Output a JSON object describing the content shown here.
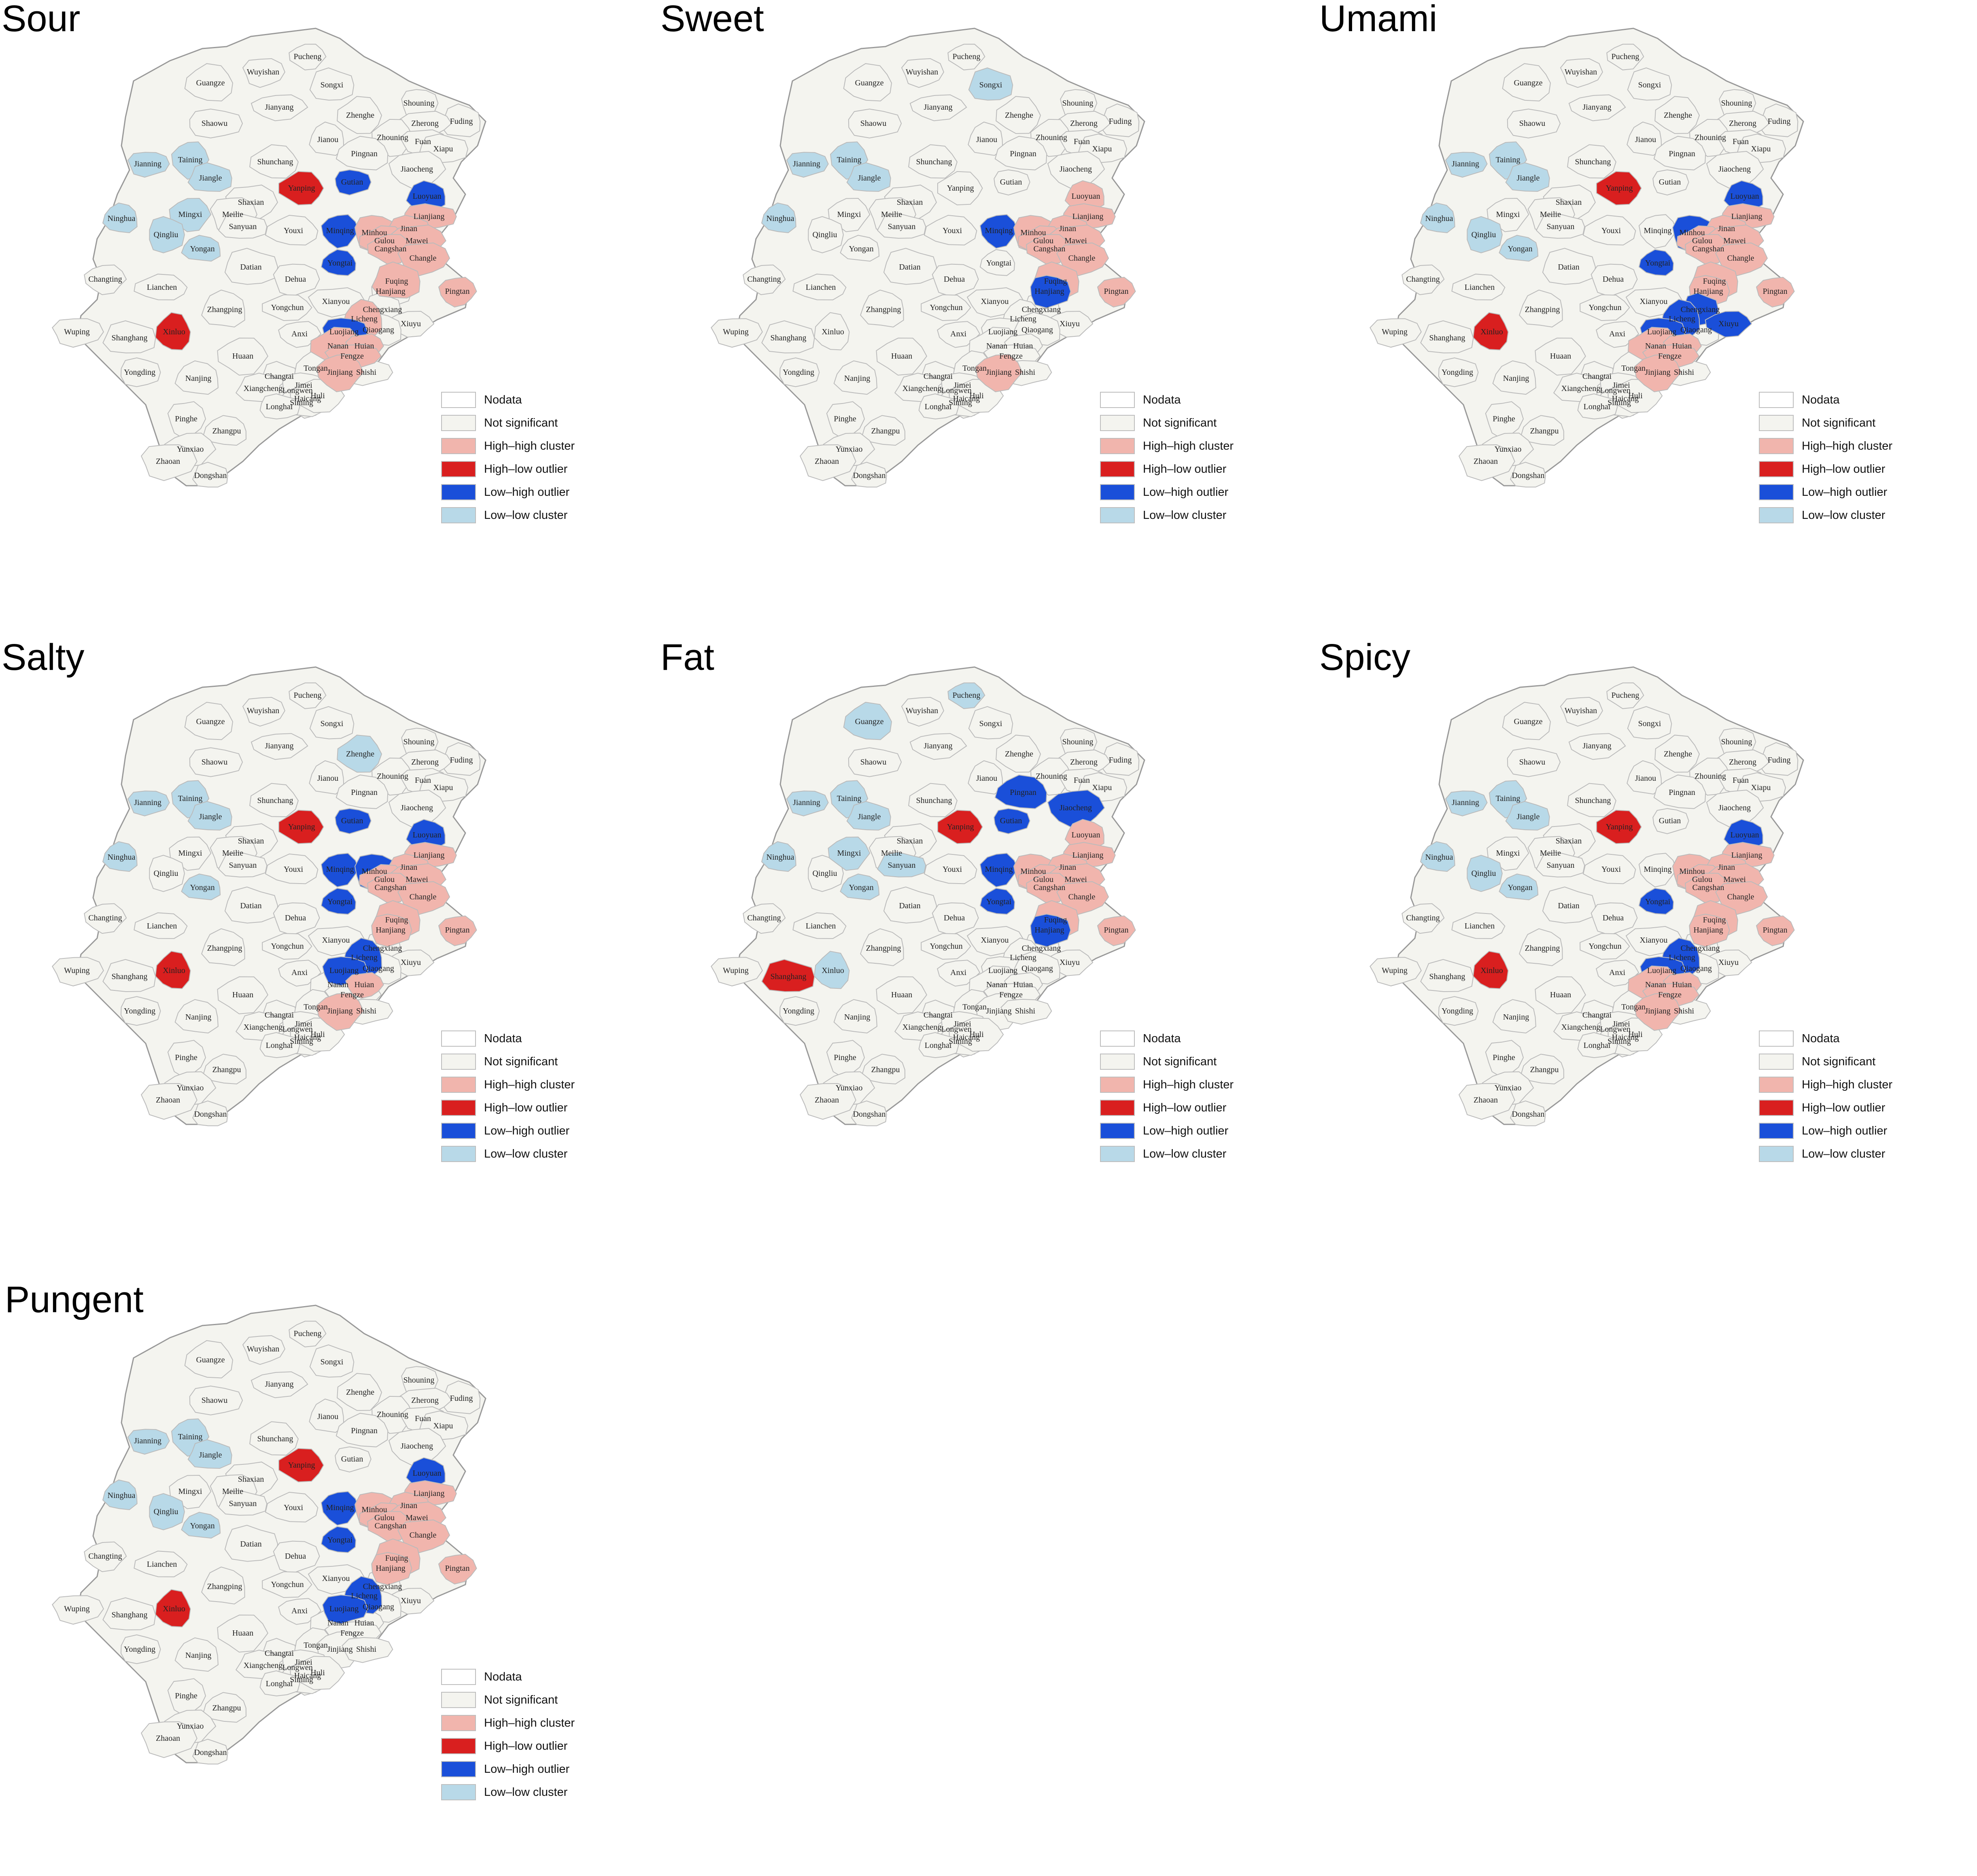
{
  "legend": {
    "items": [
      {
        "key": "nodata",
        "label": "Nodata",
        "color": "#ffffff"
      },
      {
        "key": "ns",
        "label": "Not significant",
        "color": "#f4f4ef"
      },
      {
        "key": "hh",
        "label": "High–high cluster",
        "color": "#f1b5ad"
      },
      {
        "key": "hl",
        "label": "High–low outlier",
        "color": "#d91f1f"
      },
      {
        "key": "lh",
        "label": "Low–high outlier",
        "color": "#1a4fd9"
      },
      {
        "key": "ll",
        "label": "Low–low cluster",
        "color": "#b8d9e8"
      }
    ]
  },
  "place_names": [
    "Pucheng",
    "Wuyishan",
    "Songxi",
    "Guangze",
    "Jianyang",
    "Shouning",
    "Fuding",
    "Zhenghe",
    "Zherong",
    "Shaowu",
    "Jianou",
    "Zhouning",
    "Fuan",
    "Xiapu",
    "Pingnan",
    "Taining",
    "Jianning",
    "Jiangle",
    "Shunchang",
    "Jiaocheng",
    "Gutian",
    "Luoyuan",
    "Yanping",
    "Shaxian",
    "Lianjiang",
    "Ninghua",
    "Mingxi",
    "Meilie",
    "Sanyuan",
    "Youxi",
    "Minqing",
    "Minhou",
    "Jinan",
    "Gulou",
    "Mawei",
    "Qingliu",
    "Yongan",
    "Cangshan",
    "Changle",
    "Datian",
    "Yongtai",
    "Changting",
    "Dehua",
    "Fuqing",
    "Lianchen",
    "Pingtan",
    "Hanjiang",
    "Zhangping",
    "Yongchun",
    "Xianyou",
    "Chengxiang",
    "Licheng",
    "Xiuyu",
    "Wuping",
    "Shanghang",
    "Xinluo",
    "Anxi",
    "Luojiang",
    "Qiaogang",
    "Nanan",
    "Huian",
    "Yongding",
    "Nanjing",
    "Huaan",
    "Fengze",
    "Changtai",
    "Tongan",
    "Jinjiang",
    "Shishi",
    "Xiangcheng",
    "Longwen",
    "Haicang",
    "Jimei",
    "Siming",
    "Huli",
    "Pinghe",
    "Longhai",
    "Zhangpu",
    "Yunxiao",
    "Zhaoan",
    "Dongshan"
  ],
  "maps": [
    {
      "title": "Sour",
      "regions": {
        "Taining": "ll",
        "Jianning": "ll",
        "Jiangle": "ll",
        "Ninghua": "ll",
        "Qingliu": "ll",
        "Yongan": "ll",
        "Mingxi": "ll",
        "Yanping": "hl",
        "Xinluo": "hl",
        "Luoyuan": "lh",
        "Minqing": "lh",
        "Yongtai": "lh",
        "Gutian": "lh",
        "Luojiang": "lh",
        "Lianjiang": "hh",
        "Minhou": "hh",
        "Jinan": "hh",
        "Gulou": "hh",
        "Mawei": "hh",
        "Cangshan": "hh",
        "Changle": "hh",
        "Fuqing": "hh",
        "Pingtan": "hh",
        "Nanan": "hh",
        "Huian": "hh",
        "Fengze": "hh",
        "Jinjiang": "hh",
        "Licheng": "hh"
      }
    },
    {
      "title": "Sweet",
      "regions": {
        "Songxi": "ll",
        "Jianning": "ll",
        "Taining": "ll",
        "Jiangle": "ll",
        "Ninghua": "ll",
        "Minqing": "lh",
        "Hanjiang": "lh",
        "Luoyuan": "hh",
        "Lianjiang": "hh",
        "Minhou": "hh",
        "Jinan": "hh",
        "Gulou": "hh",
        "Mawei": "hh",
        "Cangshan": "hh",
        "Changle": "hh",
        "Fuqing": "hh",
        "Pingtan": "hh",
        "Jinjiang": "hh"
      }
    },
    {
      "title": "Umami",
      "regions": {
        "Taining": "ll",
        "Jianning": "ll",
        "Jiangle": "ll",
        "Ninghua": "ll",
        "Qingliu": "ll",
        "Yongan": "ll",
        "Yanping": "hl",
        "Xinluo": "hl",
        "Luoyuan": "lh",
        "Yongtai": "lh",
        "Minhou": "lh",
        "Chengxiang": "lh",
        "Licheng": "lh",
        "Luojiang": "lh",
        "Xiuyu": "lh",
        "Lianjiang": "hh",
        "Jinan": "hh",
        "Gulou": "hh",
        "Mawei": "hh",
        "Cangshan": "hh",
        "Changle": "hh",
        "Fuqing": "hh",
        "Pingtan": "hh",
        "Hanjiang": "hh",
        "Nanan": "hh",
        "Huian": "hh",
        "Fengze": "hh",
        "Jinjiang": "hh"
      }
    },
    {
      "title": "Salty",
      "regions": {
        "Zhenghe": "ll",
        "Taining": "ll",
        "Jianning": "ll",
        "Jiangle": "ll",
        "Ninghua": "ll",
        "Yongan": "ll",
        "Yanping": "hl",
        "Xinluo": "hl",
        "Luoyuan": "lh",
        "Minqing": "lh",
        "Minhou": "lh",
        "Yongtai": "lh",
        "Gutian": "lh",
        "Luojiang": "lh",
        "Licheng": "lh",
        "Lianjiang": "hh",
        "Jinan": "hh",
        "Gulou": "hh",
        "Mawei": "hh",
        "Cangshan": "hh",
        "Changle": "hh",
        "Fuqing": "hh",
        "Pingtan": "hh",
        "Hanjiang": "hh",
        "Huian": "hh",
        "Jinjiang": "hh"
      }
    },
    {
      "title": "Fat",
      "regions": {
        "Guangze": "ll",
        "Pucheng": "ll",
        "Taining": "ll",
        "Jianning": "ll",
        "Jiangle": "ll",
        "Ninghua": "ll",
        "Mingxi": "ll",
        "Sanyuan": "ll",
        "Yongan": "ll",
        "Xinluo": "ll",
        "Yanping": "hl",
        "Shanghang": "hl",
        "Gutian": "lh",
        "Pingnan": "lh",
        "Minqing": "lh",
        "Yongtai": "lh",
        "Jiaocheng": "lh",
        "Hanjiang": "lh",
        "Luoyuan": "hh",
        "Lianjiang": "hh",
        "Minhou": "hh",
        "Jinan": "hh",
        "Gulou": "hh",
        "Mawei": "hh",
        "Cangshan": "hh",
        "Changle": "hh",
        "Fuqing": "hh",
        "Pingtan": "hh"
      }
    },
    {
      "title": "Spicy",
      "regions": {
        "Taining": "ll",
        "Jianning": "ll",
        "Jiangle": "ll",
        "Ninghua": "ll",
        "Qingliu": "ll",
        "Yongan": "ll",
        "Yanping": "hl",
        "Xinluo": "hl",
        "Luoyuan": "lh",
        "Yongtai": "lh",
        "Luojiang": "lh",
        "Licheng": "lh",
        "Lianjiang": "hh",
        "Minhou": "hh",
        "Jinan": "hh",
        "Gulou": "hh",
        "Mawei": "hh",
        "Cangshan": "hh",
        "Changle": "hh",
        "Fuqing": "hh",
        "Pingtan": "hh",
        "Hanjiang": "hh",
        "Nanan": "hh",
        "Huian": "hh",
        "Fengze": "hh",
        "Jinjiang": "hh"
      }
    },
    {
      "title": "Pungent",
      "regions": {
        "Taining": "ll",
        "Jianning": "ll",
        "Jiangle": "ll",
        "Ninghua": "ll",
        "Qingliu": "ll",
        "Yongan": "ll",
        "Yanping": "hl",
        "Xinluo": "hl",
        "Luoyuan": "lh",
        "Minqing": "lh",
        "Yongtai": "lh",
        "Luojiang": "lh",
        "Licheng": "lh",
        "Lianjiang": "hh",
        "Minhou": "hh",
        "Jinan": "hh",
        "Gulou": "hh",
        "Mawei": "hh",
        "Cangshan": "hh",
        "Changle": "hh",
        "Fuqing": "hh",
        "Pingtan": "hh",
        "Hanjiang": "hh"
      }
    }
  ]
}
